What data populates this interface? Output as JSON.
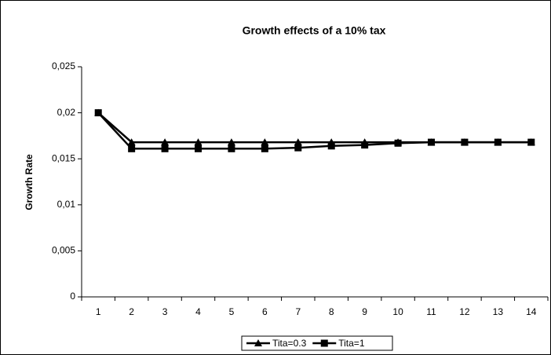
{
  "chart_data": {
    "type": "line",
    "title": "Growth effects of a 10% tax",
    "y_label": "Growth Rate",
    "categories": [
      "1",
      "2",
      "3",
      "4",
      "5",
      "6",
      "7",
      "8",
      "9",
      "10",
      "11",
      "12",
      "13",
      "14"
    ],
    "series": [
      {
        "name": "Tita=0.3",
        "color": "#000000",
        "marker": "triangle",
        "values": [
          0.02,
          0.0168,
          0.0168,
          0.0168,
          0.0168,
          0.0168,
          0.0168,
          0.0168,
          0.0168,
          0.0168,
          0.0168,
          0.0168,
          0.0168,
          0.0168
        ]
      },
      {
        "name": "Tita=1",
        "color": "#000000",
        "marker": "square",
        "values": [
          0.02,
          0.0161,
          0.0161,
          0.0161,
          0.0161,
          0.0161,
          0.0162,
          0.0164,
          0.0165,
          0.0167,
          0.0168,
          0.0168,
          0.0168,
          0.0168
        ]
      }
    ],
    "ylim": [
      0,
      0.025
    ],
    "yticks": [
      0,
      {
        "value": 0.005,
        "label": "0,005"
      },
      {
        "value": 0.01,
        "label": "0,01"
      },
      {
        "value": 0.015,
        "label": "0,015"
      },
      {
        "value": 0.02,
        "label": "0,02"
      },
      {
        "value": 0.025,
        "label": "0,025"
      }
    ],
    "grid": false,
    "legend": "bottom"
  }
}
